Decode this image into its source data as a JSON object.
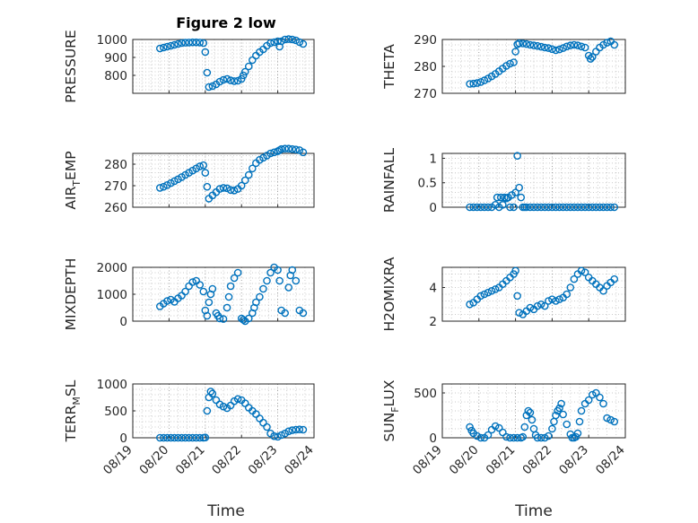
{
  "figure": {
    "title": "Figure 2 low",
    "xlabel": "Time",
    "marker_color": "#0072BD",
    "x_tick_labels": [
      "08/19",
      "08/20",
      "08/21",
      "08/22",
      "08/23",
      "08/24"
    ]
  },
  "chart_data": [
    {
      "type": "scatter",
      "ylabel": "PRESSURE",
      "ylim": [
        700,
        1000
      ],
      "yticks": [
        800,
        900,
        1000
      ],
      "grid": true,
      "xlim": [
        0,
        5
      ],
      "x": [
        0.75,
        0.85,
        0.95,
        1.05,
        1.15,
        1.25,
        1.35,
        1.45,
        1.55,
        1.65,
        1.75,
        1.85,
        1.95,
        2.0,
        2.05,
        2.1,
        2.2,
        2.3,
        2.4,
        2.5,
        2.6,
        2.7,
        2.8,
        2.9,
        3.0,
        3.05,
        3.1,
        3.2,
        3.3,
        3.4,
        3.5,
        3.6,
        3.7,
        3.8,
        3.9,
        4.0,
        4.05,
        4.1,
        4.2,
        4.3,
        4.4,
        4.5,
        4.6,
        4.7
      ],
      "y": [
        950,
        955,
        960,
        965,
        970,
        975,
        980,
        982,
        983,
        984,
        984,
        983,
        980,
        930,
        815,
        735,
        740,
        750,
        765,
        775,
        780,
        772,
        768,
        770,
        780,
        800,
        820,
        850,
        885,
        910,
        930,
        945,
        965,
        980,
        985,
        990,
        960,
        990,
        1000,
        1002,
        1000,
        995,
        985,
        975
      ]
    },
    {
      "type": "scatter",
      "ylabel": "THETA",
      "ylim": [
        270,
        290
      ],
      "yticks": [
        270,
        280,
        290
      ],
      "grid": true,
      "xlim": [
        0,
        5
      ],
      "x": [
        0.75,
        0.85,
        0.95,
        1.05,
        1.15,
        1.25,
        1.35,
        1.45,
        1.55,
        1.65,
        1.75,
        1.85,
        1.95,
        2.0,
        2.05,
        2.1,
        2.2,
        2.3,
        2.4,
        2.5,
        2.6,
        2.7,
        2.8,
        2.9,
        3.0,
        3.1,
        3.2,
        3.3,
        3.4,
        3.5,
        3.6,
        3.7,
        3.8,
        3.9,
        4.0,
        4.05,
        4.1,
        4.2,
        4.3,
        4.4,
        4.5,
        4.6,
        4.7
      ],
      "y": [
        273.5,
        273.6,
        273.8,
        274.2,
        274.8,
        275.5,
        276.3,
        277.2,
        278.2,
        279.2,
        280.2,
        281.0,
        281.5,
        285.5,
        288.2,
        288.6,
        288.5,
        288.3,
        288.0,
        287.8,
        287.6,
        287.3,
        287.0,
        286.8,
        286.4,
        286.0,
        286.3,
        286.8,
        287.4,
        287.8,
        288.0,
        287.8,
        287.4,
        287.0,
        284.0,
        282.8,
        283.5,
        285.5,
        287.0,
        288.0,
        288.8,
        289.3,
        288.0
      ]
    },
    {
      "type": "scatter",
      "ylabel": "AIR_TEMP",
      "ylim": [
        260,
        285
      ],
      "yticks": [
        260,
        270,
        280
      ],
      "grid": true,
      "xlim": [
        0,
        5
      ],
      "x": [
        0.75,
        0.85,
        0.95,
        1.05,
        1.15,
        1.25,
        1.35,
        1.45,
        1.55,
        1.65,
        1.75,
        1.85,
        1.95,
        2.0,
        2.05,
        2.1,
        2.2,
        2.3,
        2.4,
        2.5,
        2.6,
        2.7,
        2.8,
        2.9,
        3.0,
        3.1,
        3.2,
        3.3,
        3.4,
        3.5,
        3.6,
        3.7,
        3.8,
        3.9,
        4.0,
        4.05,
        4.1,
        4.2,
        4.3,
        4.4,
        4.5,
        4.6,
        4.7
      ],
      "y": [
        269,
        269.5,
        270.3,
        271.2,
        272.1,
        273.0,
        274.0,
        275.0,
        276.0,
        277.0,
        278.0,
        279.0,
        279.5,
        276.0,
        269.5,
        264.0,
        265.5,
        267.0,
        268.5,
        269.0,
        268.8,
        268.0,
        267.8,
        268.5,
        270.0,
        272.5,
        275.0,
        278.0,
        280.5,
        282.0,
        283.0,
        284.0,
        285.0,
        285.5,
        286.0,
        286.5,
        287.0,
        287.2,
        287.2,
        287.0,
        286.8,
        286.5,
        285.5
      ]
    },
    {
      "type": "scatter",
      "ylabel": "RAINFALL",
      "ylim": [
        0,
        1.1
      ],
      "yticks": [
        0,
        0.5,
        1
      ],
      "grid": true,
      "xlim": [
        0,
        5
      ],
      "x": [
        0.75,
        0.85,
        0.95,
        1.05,
        1.15,
        1.25,
        1.35,
        1.45,
        1.5,
        1.55,
        1.6,
        1.65,
        1.7,
        1.75,
        1.8,
        1.85,
        1.9,
        1.95,
        2.0,
        2.05,
        2.1,
        2.15,
        2.2,
        2.25,
        2.3,
        2.4,
        2.5,
        2.6,
        2.7,
        2.8,
        2.9,
        3.0,
        3.1,
        3.2,
        3.3,
        3.4,
        3.5,
        3.6,
        3.7,
        3.8,
        3.9,
        4.0,
        4.1,
        4.2,
        4.3,
        4.4,
        4.5,
        4.6,
        4.7
      ],
      "y": [
        0,
        0,
        0,
        0,
        0,
        0,
        0,
        0.05,
        0.2,
        0,
        0.2,
        0.05,
        0.2,
        0.18,
        0.2,
        0,
        0.25,
        0,
        0.3,
        1.05,
        0.4,
        0.2,
        0,
        0,
        0,
        0,
        0,
        0,
        0,
        0,
        0,
        0,
        0,
        0,
        0,
        0,
        0,
        0,
        0,
        0,
        0,
        0,
        0,
        0,
        0,
        0,
        0,
        0,
        0
      ]
    },
    {
      "type": "scatter",
      "ylabel": "MIXDEPTH",
      "ylim": [
        0,
        2000
      ],
      "yticks": [
        0,
        1000,
        2000
      ],
      "grid": true,
      "xlim": [
        0,
        5
      ],
      "x": [
        0.75,
        0.85,
        0.95,
        1.05,
        1.15,
        1.25,
        1.35,
        1.45,
        1.55,
        1.65,
        1.75,
        1.85,
        1.95,
        2.0,
        2.05,
        2.1,
        2.15,
        2.2,
        2.3,
        2.35,
        2.4,
        2.5,
        2.6,
        2.65,
        2.7,
        2.8,
        2.9,
        3.0,
        3.05,
        3.1,
        3.2,
        3.3,
        3.35,
        3.4,
        3.5,
        3.6,
        3.7,
        3.8,
        3.9,
        4.0,
        4.05,
        4.1,
        4.2,
        4.3,
        4.35,
        4.4,
        4.5,
        4.6,
        4.7
      ],
      "y": [
        550,
        650,
        750,
        800,
        720,
        850,
        950,
        1100,
        1300,
        1450,
        1500,
        1350,
        1100,
        400,
        200,
        700,
        1000,
        1200,
        300,
        200,
        100,
        80,
        500,
        900,
        1300,
        1600,
        1800,
        100,
        50,
        0,
        100,
        300,
        500,
        700,
        900,
        1200,
        1500,
        1800,
        2000,
        1900,
        1500,
        400,
        300,
        1250,
        1700,
        1900,
        1500,
        400,
        300
      ]
    },
    {
      "type": "scatter",
      "ylabel": "H2OMIXRA",
      "ylim": [
        2,
        5.2
      ],
      "yticks": [
        2,
        4
      ],
      "grid": true,
      "xlim": [
        0,
        5
      ],
      "x": [
        0.75,
        0.85,
        0.95,
        1.05,
        1.15,
        1.25,
        1.35,
        1.45,
        1.55,
        1.65,
        1.75,
        1.85,
        1.95,
        2.0,
        2.05,
        2.1,
        2.2,
        2.3,
        2.4,
        2.5,
        2.6,
        2.7,
        2.8,
        2.9,
        3.0,
        3.1,
        3.2,
        3.3,
        3.4,
        3.5,
        3.6,
        3.7,
        3.8,
        3.9,
        4.0,
        4.1,
        4.2,
        4.3,
        4.4,
        4.5,
        4.6,
        4.7
      ],
      "y": [
        3.0,
        3.1,
        3.3,
        3.5,
        3.6,
        3.7,
        3.8,
        3.9,
        4.0,
        4.2,
        4.4,
        4.6,
        4.8,
        5.0,
        3.5,
        2.5,
        2.4,
        2.6,
        2.8,
        2.7,
        2.9,
        3.0,
        2.9,
        3.2,
        3.3,
        3.2,
        3.3,
        3.4,
        3.6,
        4.0,
        4.5,
        4.8,
        5.0,
        4.9,
        4.6,
        4.4,
        4.2,
        4.0,
        3.8,
        4.1,
        4.3,
        4.5
      ]
    },
    {
      "type": "scatter",
      "ylabel": "TERR_MSL",
      "ylim": [
        0,
        1000
      ],
      "yticks": [
        0,
        500,
        1000
      ],
      "grid": true,
      "xlim": [
        0,
        5
      ],
      "x": [
        0.75,
        0.85,
        0.95,
        1.05,
        1.15,
        1.25,
        1.35,
        1.45,
        1.55,
        1.65,
        1.75,
        1.85,
        1.95,
        2.0,
        2.05,
        2.1,
        2.15,
        2.2,
        2.3,
        2.4,
        2.5,
        2.6,
        2.7,
        2.8,
        2.9,
        3.0,
        3.1,
        3.2,
        3.3,
        3.4,
        3.5,
        3.6,
        3.7,
        3.8,
        3.9,
        4.0,
        4.1,
        4.2,
        4.3,
        4.4,
        4.5,
        4.6,
        4.7
      ],
      "y": [
        0,
        0,
        0,
        0,
        0,
        0,
        0,
        0,
        0,
        0,
        0,
        0,
        0,
        5,
        500,
        750,
        860,
        820,
        700,
        620,
        580,
        550,
        600,
        680,
        720,
        700,
        640,
        560,
        500,
        440,
        360,
        280,
        200,
        80,
        30,
        20,
        50,
        80,
        120,
        140,
        150,
        155,
        150
      ]
    },
    {
      "type": "scatter",
      "ylabel": "SUN_FLUX",
      "ylim": [
        0,
        600
      ],
      "yticks": [
        0,
        500
      ],
      "grid": true,
      "xlim": [
        0,
        5
      ],
      "x": [
        0.75,
        0.8,
        0.85,
        0.95,
        1.05,
        1.15,
        1.25,
        1.35,
        1.45,
        1.55,
        1.65,
        1.75,
        1.85,
        1.95,
        2.05,
        2.15,
        2.2,
        2.25,
        2.3,
        2.35,
        2.4,
        2.45,
        2.5,
        2.55,
        2.6,
        2.7,
        2.8,
        2.9,
        3.0,
        3.05,
        3.1,
        3.15,
        3.2,
        3.25,
        3.3,
        3.4,
        3.5,
        3.55,
        3.6,
        3.65,
        3.7,
        3.75,
        3.8,
        3.9,
        4.0,
        4.1,
        4.2,
        4.3,
        4.4,
        4.5,
        4.6,
        4.7
      ],
      "y": [
        120,
        80,
        50,
        20,
        0,
        0,
        30,
        90,
        130,
        110,
        60,
        10,
        0,
        0,
        0,
        0,
        10,
        120,
        250,
        300,
        280,
        200,
        100,
        30,
        0,
        0,
        0,
        20,
        100,
        180,
        250,
        300,
        330,
        380,
        260,
        150,
        40,
        0,
        0,
        10,
        50,
        180,
        300,
        380,
        420,
        480,
        500,
        450,
        380,
        220,
        200,
        180
      ]
    }
  ]
}
